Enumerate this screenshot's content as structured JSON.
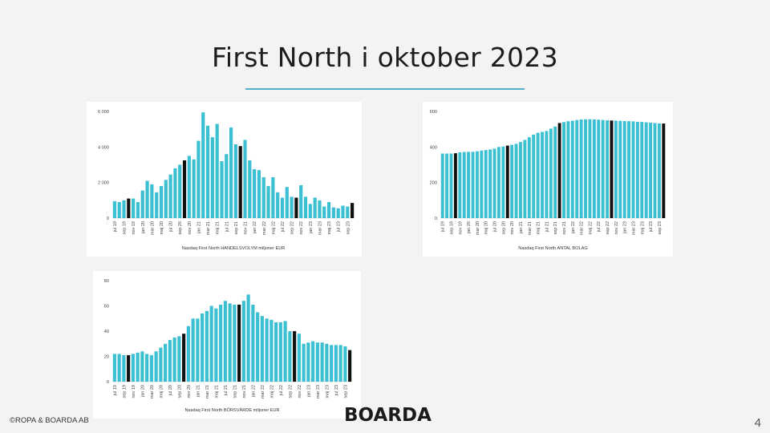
{
  "title": "First North i oktober 2023",
  "footer": {
    "copyright": "©ROPA & BOARDA AB",
    "logo": "BOARDA",
    "page_number": "4"
  },
  "colors": {
    "accent": "#3bbfd3",
    "highlight": "#111111",
    "rule": "#4fb0c8"
  },
  "chart_data": [
    {
      "type": "bar",
      "xlabel": "Nasdaq First North HANDELSVOLYM miljoner EUR",
      "ylabel": "",
      "ylim": [
        0,
        6000
      ],
      "yticks": [
        0,
        2000,
        4000,
        6000
      ],
      "ytick_labels": [
        "0",
        "2 000",
        "4 000",
        "6 000"
      ],
      "x_tick_labels": [
        "jul 19",
        "sep 19",
        "nov 19",
        "jan 20",
        "mar 20",
        "maj 20",
        "jul 20",
        "sep 20",
        "nov 20",
        "jan 21",
        "mar 21",
        "maj 21",
        "jul 21",
        "sep 21",
        "nov 21",
        "jan 22",
        "mar 22",
        "maj 22",
        "jul 22",
        "sep 22",
        "nov 22",
        "jan 23",
        "mar 23",
        "maj 23",
        "jul 23",
        "sep 23"
      ],
      "values": [
        950,
        900,
        1000,
        1100,
        1100,
        900,
        1550,
        2100,
        1900,
        1450,
        1800,
        2150,
        2450,
        2800,
        3000,
        3250,
        3500,
        3300,
        4350,
        5950,
        5200,
        4550,
        5300,
        3200,
        3600,
        5100,
        4150,
        4050,
        4400,
        3250,
        2750,
        2700,
        2300,
        1800,
        2300,
        1450,
        1150,
        1750,
        1200,
        1150,
        1850,
        1200,
        800,
        1150,
        1000,
        650,
        900,
        600,
        550,
        700,
        650,
        850
      ],
      "highlight_indices": [
        3,
        15,
        27,
        39,
        51
      ]
    },
    {
      "type": "bar",
      "xlabel": "Nasdaq First North ANTAL BOLAG",
      "ylabel": "",
      "ylim": [
        0,
        600
      ],
      "yticks": [
        0,
        200,
        400,
        600
      ],
      "ytick_labels": [
        "0",
        "200",
        "400",
        "600"
      ],
      "x_tick_labels": [
        "jul 19",
        "sep 19",
        "nov 19",
        "jan 20",
        "mar 20",
        "maj 20",
        "jul 20",
        "sep 20",
        "nov 20",
        "jan 21",
        "mar 21",
        "maj 21",
        "jul 21",
        "sep 21",
        "nov 21",
        "jan 22",
        "mar 22",
        "maj 22",
        "jul 22",
        "sep 22",
        "nov 22",
        "jan 23",
        "mar 23",
        "maj 23",
        "jul 23",
        "sep 23"
      ],
      "values": [
        363,
        363,
        363,
        365,
        370,
        372,
        373,
        373,
        376,
        380,
        383,
        386,
        391,
        400,
        403,
        408,
        412,
        418,
        428,
        440,
        455,
        470,
        480,
        485,
        490,
        503,
        515,
        535,
        540,
        545,
        548,
        552,
        555,
        556,
        556,
        555,
        554,
        552,
        550,
        549,
        548,
        547,
        546,
        545,
        544,
        542,
        541,
        539,
        537,
        535,
        533,
        532
      ],
      "highlight_indices": [
        3,
        15,
        27,
        39,
        51
      ]
    },
    {
      "type": "bar",
      "xlabel": "Nasdaq First North BÖRSVÄRDE miljoner EUR",
      "ylabel": "",
      "ylim": [
        0,
        80
      ],
      "yticks": [
        0,
        20,
        40,
        60,
        80
      ],
      "ytick_labels": [
        "0",
        "20",
        "40",
        "60",
        "80"
      ],
      "x_tick_labels": [
        "jul 19",
        "sep 19",
        "nov 19",
        "jan 20",
        "mar 20",
        "maj 20",
        "jul 20",
        "sep 20",
        "nov 20",
        "jan 21",
        "mar 21",
        "maj 21",
        "jul 21",
        "sep 21",
        "nov 21",
        "jan 22",
        "mar 22",
        "maj 22",
        "jul 22",
        "sep 22",
        "nov 22",
        "jan 23",
        "mar 23",
        "maj 23",
        "jul 23",
        "sep 23"
      ],
      "values": [
        22,
        22,
        21,
        21,
        22,
        23,
        24,
        22,
        21,
        24,
        27,
        30,
        33,
        35,
        36,
        38,
        44,
        50,
        50,
        54,
        56,
        60,
        58,
        61,
        64,
        62,
        61,
        61,
        64,
        69,
        61,
        55,
        52,
        50,
        49,
        47,
        47,
        48,
        40,
        40,
        38,
        30,
        31,
        32,
        31,
        31,
        30,
        29,
        29,
        29,
        28,
        25
      ],
      "highlight_indices": [
        3,
        15,
        27,
        39,
        51
      ]
    }
  ]
}
